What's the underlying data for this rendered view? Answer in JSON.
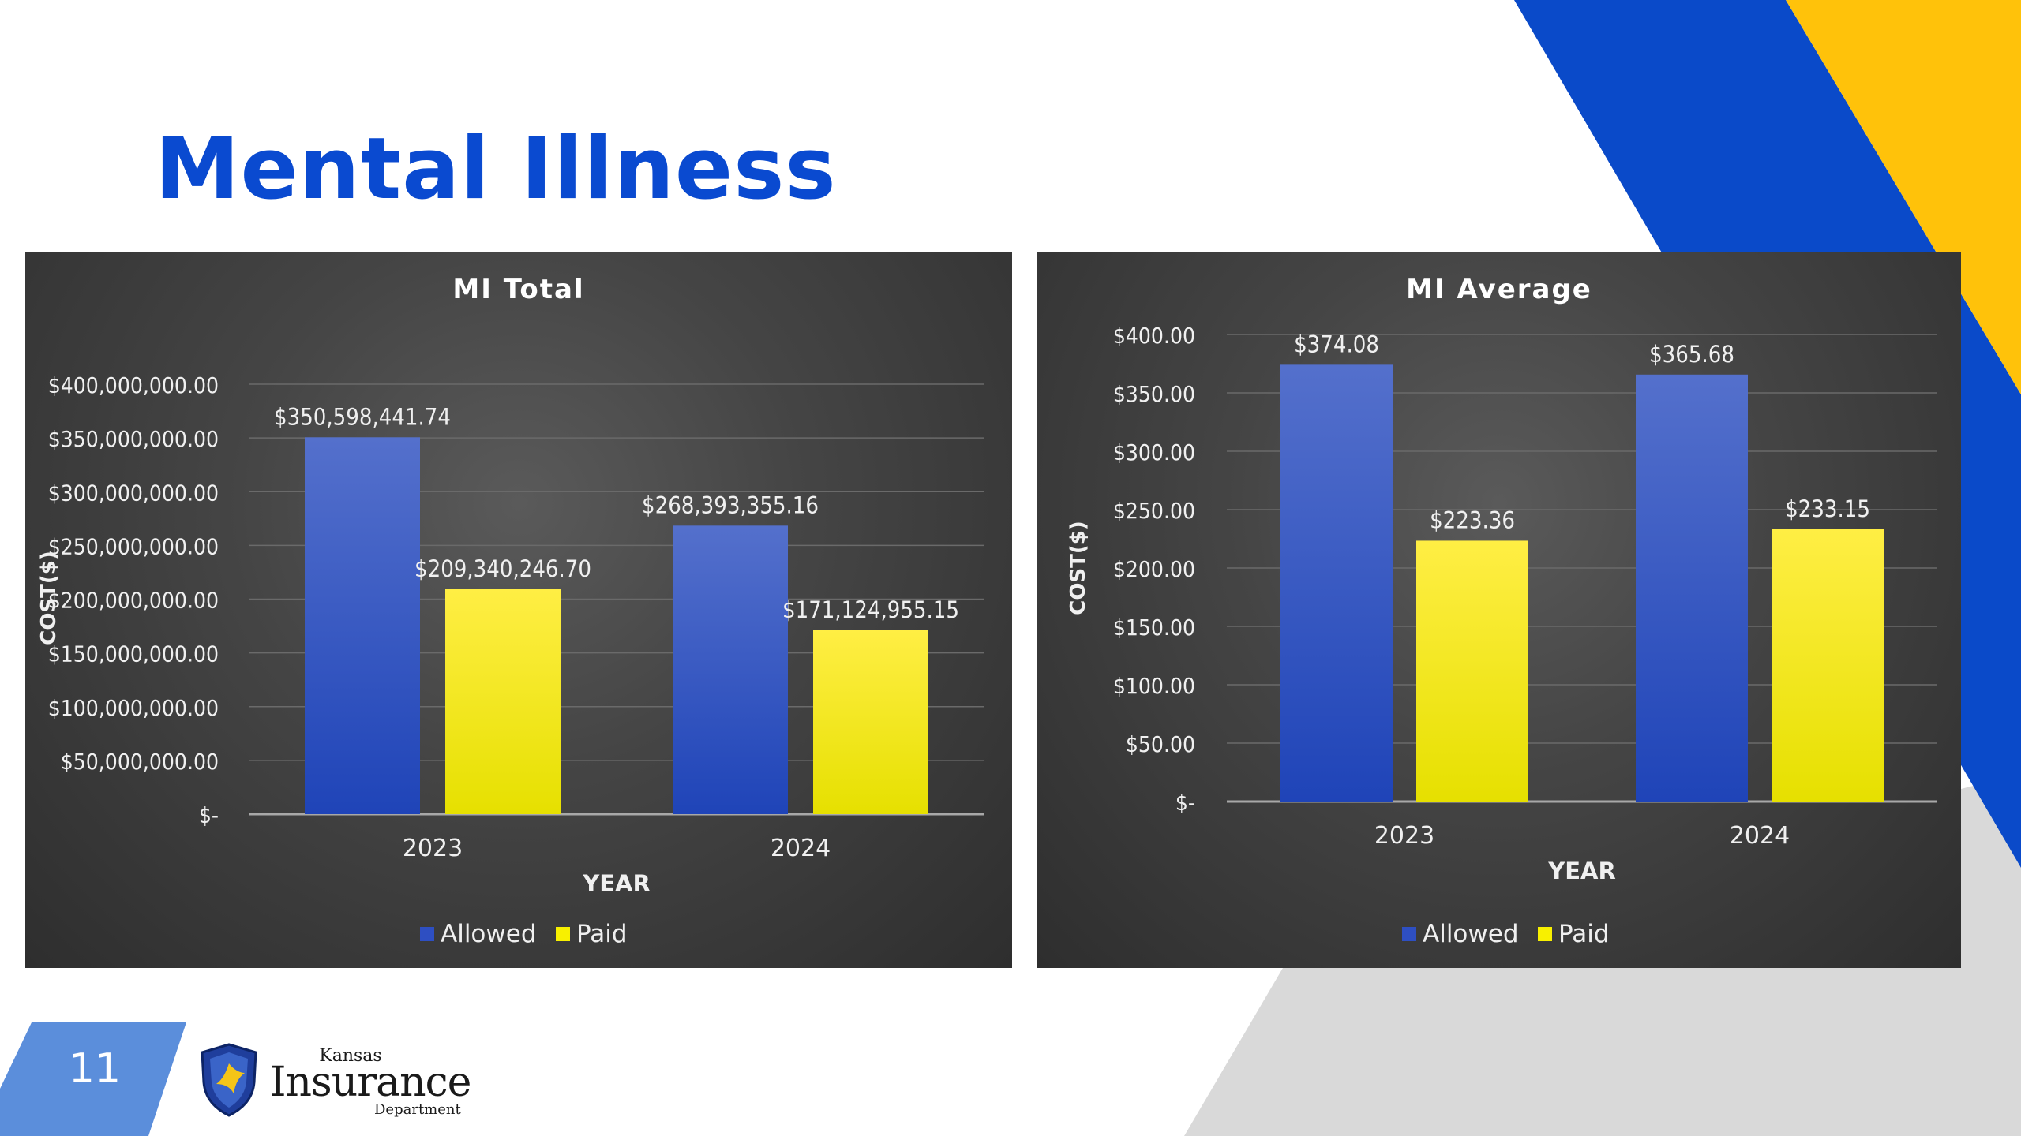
{
  "slide": {
    "title": "Mental Illness",
    "page_number": "11"
  },
  "logo": {
    "line1": "Kansas",
    "line2": "Insurance",
    "line3": "Department"
  },
  "colors": {
    "title": "#0A4AD0",
    "decor_blue": "#0A4AC9",
    "decor_yellow": "#FFC20A",
    "decor_gray": "#D9D9D9",
    "page_tab": "#5B8EDB",
    "allowed": "#2E4FC2",
    "paid": "#F8F000"
  },
  "chart_data": [
    {
      "type": "bar",
      "title": "MI Total",
      "xlabel": "YEAR",
      "ylabel": "COST($)",
      "categories": [
        "2023",
        "2024"
      ],
      "series": [
        {
          "name": "Allowed",
          "values": [
            350598441.74,
            268393355.16
          ],
          "labels": [
            "$350,598,441.74",
            "$268,393,355.16"
          ]
        },
        {
          "name": "Paid",
          "values": [
            209340246.7,
            171124955.15
          ],
          "labels": [
            "$209,340,246.70",
            "$171,124,955.15"
          ]
        }
      ],
      "ylim": [
        0,
        400000000
      ],
      "yticks": [
        0,
        50000000,
        100000000,
        150000000,
        200000000,
        250000000,
        300000000,
        350000000,
        400000000
      ],
      "ytick_labels": [
        "$-",
        "$50,000,000.00",
        "$100,000,000.00",
        "$150,000,000.00",
        "$200,000,000.00",
        "$250,000,000.00",
        "$300,000,000.00",
        "$350,000,000.00",
        "$400,000,000.00"
      ],
      "legend": "bottom",
      "grid": true
    },
    {
      "type": "bar",
      "title": "MI Average",
      "xlabel": "YEAR",
      "ylabel": "COST($)",
      "categories": [
        "2023",
        "2024"
      ],
      "series": [
        {
          "name": "Allowed",
          "values": [
            374.08,
            365.68
          ],
          "labels": [
            "$374.08",
            "$365.68"
          ]
        },
        {
          "name": "Paid",
          "values": [
            223.36,
            233.15
          ],
          "labels": [
            "$223.36",
            "$233.15"
          ]
        }
      ],
      "ylim": [
        0,
        400
      ],
      "yticks": [
        0,
        50,
        100,
        150,
        200,
        250,
        300,
        350,
        400
      ],
      "ytick_labels": [
        "$-",
        "$50.00",
        "$100.00",
        "$150.00",
        "$200.00",
        "$250.00",
        "$300.00",
        "$350.00",
        "$400.00"
      ],
      "legend": "bottom",
      "grid": true
    }
  ]
}
